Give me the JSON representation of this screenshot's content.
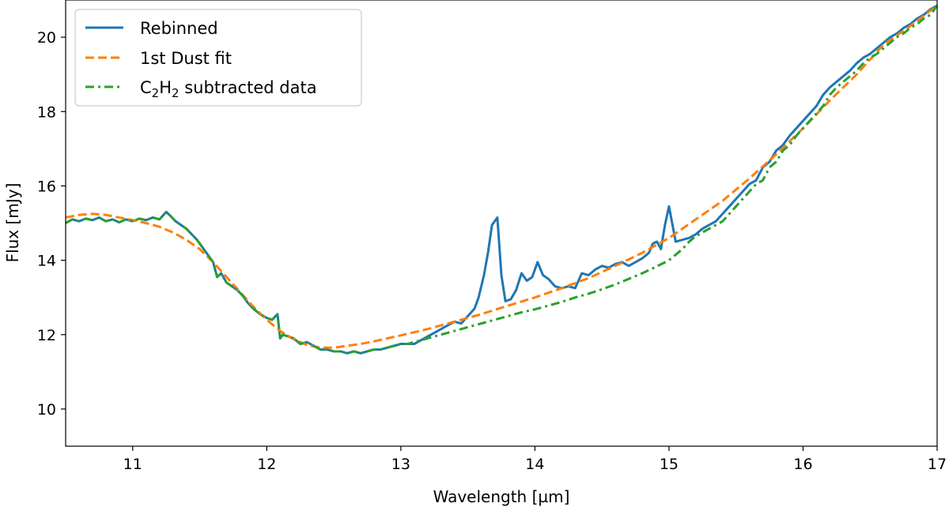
{
  "chart_data": {
    "type": "line",
    "title": "",
    "xlabel": "Wavelength [µm]",
    "ylabel": "Flux [mJy]",
    "xlim": [
      10.5,
      17.0
    ],
    "ylim": [
      9.0,
      21.0
    ],
    "xticks": [
      11,
      12,
      13,
      14,
      15,
      16,
      17
    ],
    "yticks": [
      10,
      12,
      14,
      16,
      18,
      20
    ],
    "xtick_labels": [
      "11",
      "12",
      "13",
      "14",
      "15",
      "16",
      "17"
    ],
    "ytick_labels": [
      "10",
      "12",
      "14",
      "16",
      "18",
      "20"
    ],
    "grid": false,
    "legend_position": "top-left",
    "legend_labels": {
      "rebinned": "Rebinned",
      "dust": "1st Dust fit",
      "c2h2_prefix": "C",
      "c2h2_sub1": "2",
      "c2h2_mid": "H",
      "c2h2_sub2": "2",
      "c2h2_suffix": " subtracted data"
    },
    "series": [
      {
        "key": "rebinned",
        "name": "Rebinned",
        "color": "#1f77b4",
        "style": "solid",
        "x": [
          10.5,
          10.55,
          10.6,
          10.65,
          10.7,
          10.75,
          10.8,
          10.85,
          10.9,
          10.95,
          11.0,
          11.05,
          11.1,
          11.15,
          11.2,
          11.25,
          11.28,
          11.32,
          11.36,
          11.4,
          11.44,
          11.48,
          11.52,
          11.56,
          11.6,
          11.63,
          11.66,
          11.7,
          11.74,
          11.78,
          11.82,
          11.86,
          11.9,
          11.95,
          12.0,
          12.04,
          12.08,
          12.1,
          12.12,
          12.16,
          12.2,
          12.25,
          12.3,
          12.35,
          12.4,
          12.45,
          12.5,
          12.55,
          12.6,
          12.65,
          12.7,
          12.75,
          12.8,
          12.85,
          12.9,
          12.95,
          13.0,
          13.05,
          13.1,
          13.15,
          13.2,
          13.25,
          13.3,
          13.35,
          13.4,
          13.45,
          13.5,
          13.55,
          13.58,
          13.62,
          13.65,
          13.68,
          13.72,
          13.75,
          13.78,
          13.82,
          13.86,
          13.9,
          13.94,
          13.98,
          14.02,
          14.06,
          14.1,
          14.15,
          14.2,
          14.25,
          14.3,
          14.35,
          14.4,
          14.45,
          14.5,
          14.55,
          14.6,
          14.65,
          14.7,
          14.75,
          14.8,
          14.85,
          14.88,
          14.91,
          14.94,
          14.97,
          15.0,
          15.05,
          15.1,
          15.15,
          15.2,
          15.25,
          15.3,
          15.35,
          15.4,
          15.45,
          15.5,
          15.55,
          15.6,
          15.65,
          15.7,
          15.75,
          15.8,
          15.85,
          15.9,
          15.95,
          16.0,
          16.05,
          16.1,
          16.15,
          16.2,
          16.25,
          16.3,
          16.35,
          16.4,
          16.45,
          16.5,
          16.55,
          16.6,
          16.65,
          16.7,
          16.75,
          16.8,
          16.85,
          16.9,
          16.95,
          17.0
        ],
        "y": [
          15.0,
          15.1,
          15.05,
          15.12,
          15.08,
          15.15,
          15.05,
          15.1,
          15.02,
          15.1,
          15.05,
          15.12,
          15.08,
          15.15,
          15.1,
          15.3,
          15.2,
          15.05,
          14.95,
          14.85,
          14.7,
          14.55,
          14.35,
          14.15,
          13.95,
          13.55,
          13.65,
          13.4,
          13.3,
          13.2,
          13.05,
          12.85,
          12.7,
          12.55,
          12.45,
          12.4,
          12.55,
          11.9,
          12.0,
          11.95,
          11.9,
          11.75,
          11.8,
          11.7,
          11.6,
          11.6,
          11.55,
          11.55,
          11.5,
          11.55,
          11.5,
          11.55,
          11.6,
          11.6,
          11.65,
          11.7,
          11.75,
          11.75,
          11.75,
          11.85,
          11.95,
          12.05,
          12.15,
          12.25,
          12.35,
          12.3,
          12.5,
          12.7,
          13.0,
          13.6,
          14.2,
          14.95,
          15.15,
          13.6,
          12.9,
          12.95,
          13.2,
          13.65,
          13.45,
          13.55,
          13.95,
          13.6,
          13.5,
          13.3,
          13.25,
          13.3,
          13.25,
          13.65,
          13.6,
          13.75,
          13.85,
          13.8,
          13.9,
          13.95,
          13.85,
          13.95,
          14.05,
          14.2,
          14.45,
          14.5,
          14.3,
          14.95,
          15.45,
          14.5,
          14.55,
          14.6,
          14.7,
          14.85,
          14.95,
          15.05,
          15.25,
          15.45,
          15.65,
          15.85,
          16.05,
          16.15,
          16.5,
          16.65,
          16.95,
          17.1,
          17.35,
          17.55,
          17.75,
          17.95,
          18.15,
          18.45,
          18.65,
          18.8,
          18.95,
          19.1,
          19.3,
          19.45,
          19.55,
          19.7,
          19.85,
          20.0,
          20.1,
          20.25,
          20.35,
          20.5,
          20.6,
          20.75,
          20.85
        ]
      },
      {
        "key": "dust",
        "name": "1st Dust fit",
        "color": "#ff7f0e",
        "style": "dashed",
        "x": [
          10.5,
          10.6,
          10.7,
          10.8,
          10.9,
          11.0,
          11.1,
          11.2,
          11.3,
          11.4,
          11.5,
          11.6,
          11.7,
          11.8,
          11.9,
          12.0,
          12.1,
          12.2,
          12.3,
          12.4,
          12.5,
          12.6,
          12.7,
          12.8,
          12.9,
          13.0,
          13.2,
          13.4,
          13.6,
          13.8,
          14.0,
          14.2,
          14.4,
          14.6,
          14.8,
          15.0,
          15.2,
          15.4,
          15.6,
          15.8,
          16.0,
          16.2,
          16.4,
          16.6,
          16.8,
          17.0
        ],
        "y": [
          15.15,
          15.22,
          15.25,
          15.22,
          15.15,
          15.08,
          15.0,
          14.9,
          14.75,
          14.55,
          14.3,
          13.95,
          13.55,
          13.15,
          12.75,
          12.4,
          12.1,
          11.88,
          11.72,
          11.65,
          11.65,
          11.7,
          11.75,
          11.82,
          11.9,
          11.98,
          12.15,
          12.35,
          12.55,
          12.78,
          13.0,
          13.25,
          13.52,
          13.85,
          14.2,
          14.6,
          15.1,
          15.6,
          16.2,
          16.85,
          17.55,
          18.3,
          19.0,
          19.8,
          20.3,
          20.85
        ]
      },
      {
        "key": "c2h2",
        "name": "C2H2 subtracted data",
        "color": "#2ca02c",
        "style": "dashdot",
        "x": [
          10.5,
          10.55,
          10.6,
          10.65,
          10.7,
          10.75,
          10.8,
          10.85,
          10.9,
          10.95,
          11.0,
          11.05,
          11.1,
          11.15,
          11.2,
          11.25,
          11.28,
          11.32,
          11.36,
          11.4,
          11.44,
          11.48,
          11.52,
          11.56,
          11.6,
          11.63,
          11.66,
          11.7,
          11.74,
          11.78,
          11.82,
          11.86,
          11.9,
          11.95,
          12.0,
          12.04,
          12.08,
          12.1,
          12.12,
          12.16,
          12.2,
          12.25,
          12.3,
          12.35,
          12.4,
          12.45,
          12.5,
          12.55,
          12.6,
          12.65,
          12.7,
          12.75,
          12.8,
          12.85,
          12.9,
          12.95,
          13.0,
          13.05,
          13.1,
          13.2,
          13.3,
          13.4,
          13.5,
          13.6,
          13.7,
          13.8,
          13.9,
          14.0,
          14.1,
          14.2,
          14.3,
          14.4,
          14.5,
          14.6,
          14.7,
          14.8,
          14.9,
          15.0,
          15.05,
          15.1,
          15.15,
          15.2,
          15.25,
          15.3,
          15.35,
          15.4,
          15.45,
          15.5,
          15.55,
          15.6,
          15.65,
          15.7,
          15.75,
          15.8,
          15.85,
          15.9,
          15.95,
          16.0,
          16.05,
          16.1,
          16.15,
          16.2,
          16.25,
          16.3,
          16.35,
          16.4,
          16.45,
          16.5,
          16.55,
          16.6,
          16.65,
          16.7,
          16.75,
          16.8,
          16.85,
          16.9,
          16.95,
          17.0
        ],
        "y": [
          15.0,
          15.1,
          15.05,
          15.12,
          15.08,
          15.15,
          15.05,
          15.1,
          15.02,
          15.1,
          15.05,
          15.12,
          15.08,
          15.15,
          15.1,
          15.3,
          15.2,
          15.05,
          14.95,
          14.85,
          14.7,
          14.55,
          14.35,
          14.15,
          13.95,
          13.55,
          13.65,
          13.4,
          13.3,
          13.2,
          13.05,
          12.85,
          12.7,
          12.55,
          12.45,
          12.4,
          12.55,
          11.9,
          12.0,
          11.95,
          11.9,
          11.75,
          11.8,
          11.7,
          11.6,
          11.6,
          11.55,
          11.55,
          11.5,
          11.55,
          11.5,
          11.55,
          11.6,
          11.6,
          11.65,
          11.7,
          11.75,
          11.75,
          11.8,
          11.9,
          12.0,
          12.1,
          12.2,
          12.3,
          12.4,
          12.5,
          12.6,
          12.68,
          12.78,
          12.88,
          13.0,
          13.1,
          13.22,
          13.35,
          13.5,
          13.65,
          13.82,
          14.0,
          14.15,
          14.3,
          14.5,
          14.65,
          14.75,
          14.85,
          14.95,
          15.05,
          15.25,
          15.45,
          15.65,
          15.85,
          16.05,
          16.15,
          16.5,
          16.65,
          16.95,
          17.1,
          17.35,
          17.55,
          17.75,
          17.95,
          18.15,
          18.45,
          18.65,
          18.8,
          18.95,
          19.1,
          19.3,
          19.45,
          19.55,
          19.7,
          19.85,
          20.0,
          20.1,
          20.25,
          20.35,
          20.5,
          20.6,
          20.85
        ]
      }
    ]
  }
}
